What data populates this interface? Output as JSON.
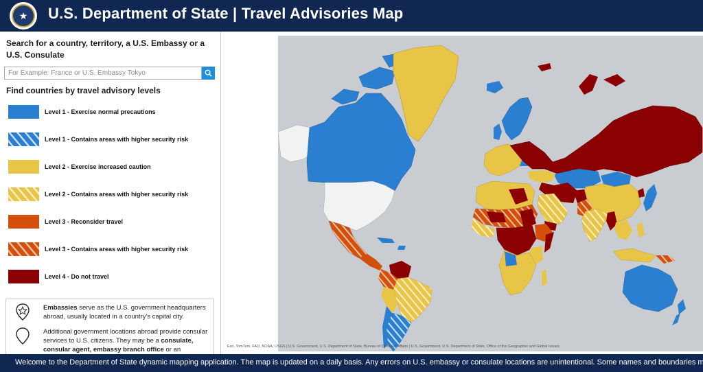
{
  "header": {
    "title": "U.S. Department of State | Travel Advisories Map",
    "logo_icon": "department-of-state-seal"
  },
  "sidebar": {
    "search_label": "Search for a country, territory, a U.S. Embassy or a U.S. Consulate",
    "search_placeholder": "For Example: France or U.S. Embassy Tokyo",
    "search_value": "",
    "search_button_icon": "search-icon",
    "levels_heading": "Find countries by travel advisory levels",
    "legend": [
      {
        "label": "Level 1 - Exercise normal precautions",
        "color": "#2b7fd0",
        "hatched": false
      },
      {
        "label": "Level 1 - Contains areas with higher security risk",
        "color": "#2b7fd0",
        "hatched": true
      },
      {
        "label": "Level 2 - Exercise increased caution",
        "color": "#e8c547",
        "hatched": false
      },
      {
        "label": "Level 2 - Contains areas with higher security risk",
        "color": "#e8c547",
        "hatched": true
      },
      {
        "label": "Level 3 - Reconsider travel",
        "color": "#d24f0c",
        "hatched": false
      },
      {
        "label": "Level 3 - Contains areas with higher security risk",
        "color": "#d24f0c",
        "hatched": true
      },
      {
        "label": "Level 4 - Do not travel",
        "color": "#8b0000",
        "hatched": false
      }
    ],
    "info": {
      "embassies_bold": "Embassies",
      "embassies_text": " serve as the U.S. government headquarters abroad, usually located in a country's capital city.",
      "other_text_1": "Additional government locations abroad provide consular services to U.S. citizens. They may be a ",
      "other_bold": "consulate, consular agent, embassy branch office",
      "other_text_2": " or an",
      "embassy_icon": "embassy-star-pin-icon",
      "other_icon": "location-pin-icon"
    }
  },
  "map": {
    "attribution": "Esri, TomTom, FAO, NOAA, USGS | U.S. Government, U.S. Department of State, Bureau of Consular Affairs | U.S. Government, U.S. Department of State, Office of the Geographer and Global Issues",
    "colors": {
      "ocean": "#c9cdd1",
      "level1": "#2b7fd0",
      "level2": "#e8c547",
      "level3": "#d24f0c",
      "level4": "#8b0000",
      "unrated": "#f2f2f2"
    }
  },
  "footer": {
    "banner": "Welcome to the Department of State dynamic mapping application. The map is updated on a daily basis.  Any errors on U.S. embassy or consulate locations are unintentional. Some names and boundaries may not"
  }
}
